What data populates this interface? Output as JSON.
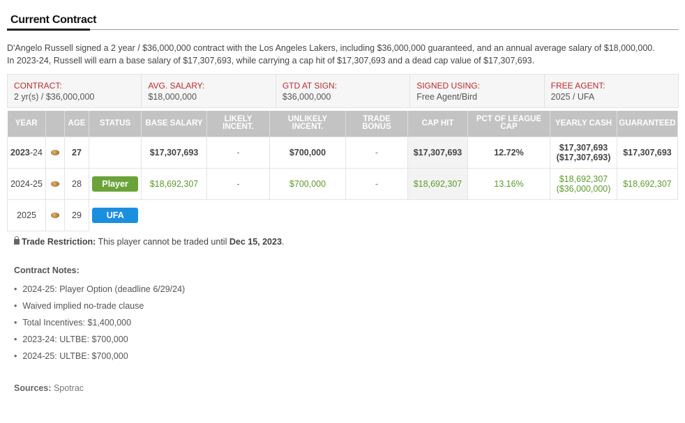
{
  "section_title": "Current Contract",
  "summary": {
    "line1": "D'Angelo Russell signed a 2 year / $36,000,000 contract with the Los Angeles Lakers, including $36,000,000 guaranteed, and an annual average salary of $18,000,000.",
    "line2": "In 2023-24, Russell will earn a base salary of $17,307,693, while carrying a cap hit of $17,307,693 and a dead cap value of $17,307,693."
  },
  "cards": [
    {
      "label": "CONTRACT:",
      "value": "2 yr(s) / $36,000,000"
    },
    {
      "label": "AVG. SALARY:",
      "value": "$18,000,000"
    },
    {
      "label": "GTD AT SIGN:",
      "value": "$36,000,000"
    },
    {
      "label": "SIGNED USING:",
      "value": "Free Agent/Bird"
    },
    {
      "label": "FREE AGENT:",
      "value": "2025 / UFA"
    }
  ],
  "table": {
    "headers": [
      "YEAR",
      "",
      "AGE",
      "STATUS",
      "BASE SALARY",
      "LIKELY INCENT.",
      "UNLIKELY INCENT.",
      "TRADE BONUS",
      "CAP HIT",
      "PCT OF LEAGUE CAP",
      "YEARLY CASH",
      "GUARANTEED"
    ],
    "rows": [
      {
        "year_a": "2023",
        "year_b": "-24",
        "age": "27",
        "status": "",
        "base_salary": "$17,307,693",
        "likely": "-",
        "unlikely": "$700,000",
        "trade_bonus": "-",
        "cap_hit": "$17,307,693",
        "pct": "12.72%",
        "cash_1": "$17,307,693",
        "cash_2": "($17,307,693)",
        "guaranteed": "$17,307,693"
      },
      {
        "year_a": "2024-25",
        "age": "28",
        "status": "Player",
        "base_salary": "$18,692,307",
        "likely": "-",
        "unlikely": "$700,000",
        "trade_bonus": "-",
        "cap_hit": "$18,692,307",
        "pct": "13.16%",
        "cash_1": "$18,692,307",
        "cash_2": "($36,000,000)",
        "guaranteed": "$18,692,307"
      },
      {
        "year_a": "2025",
        "age": "29",
        "status": "UFA"
      }
    ]
  },
  "restriction": {
    "label": "Trade Restriction:",
    "text": " This player cannot be traded until ",
    "date": "Dec 15, 2023",
    "end": "."
  },
  "notes": {
    "title": "Contract Notes:",
    "items": [
      "2024-25: Player Option (deadline 6/29/24)",
      "Waived implied no-trade clause",
      "Total Incentives: $1,400,000",
      "2023-24: ULTBE: $700,000",
      "2024-25: ULTBE: $700,000"
    ]
  },
  "sources": {
    "label": "Sources:",
    "value": " Spotrac"
  },
  "icons": [
    "basketball-icon",
    "lock-icon"
  ],
  "colors": {
    "label_red": "#c0282f",
    "green": "#5a9a2a",
    "player_badge": "#6aa33a",
    "ufa_badge": "#1a8fe0",
    "header_gray": "#c3c3c3"
  }
}
